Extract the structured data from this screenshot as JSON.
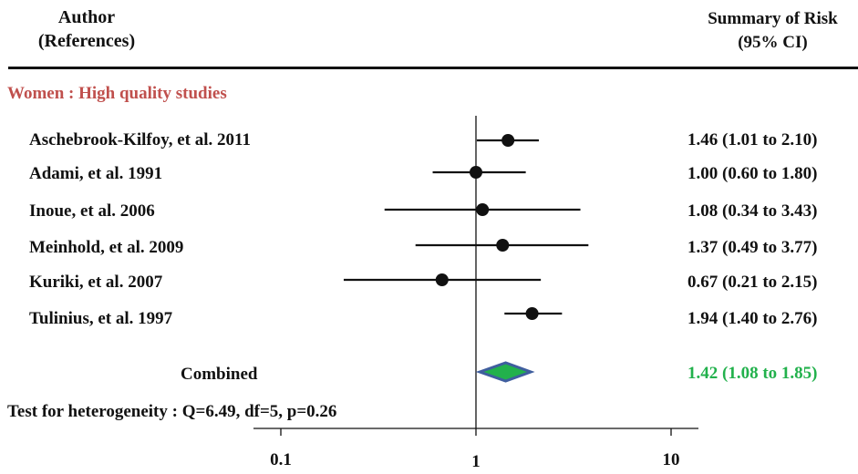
{
  "header": {
    "left_line1": "Author",
    "left_line2": "(References)",
    "right_line1": "Summary of Risk",
    "right_line2": "(95% CI)"
  },
  "subgroup_label": "Women : High quality studies",
  "heterogeneity": "Test for heterogeneity : Q=6.49,  df=5, p=0.26",
  "chart_data": {
    "type": "forest",
    "scale": "log",
    "xlim": [
      0.1,
      10
    ],
    "ticks": [
      "0.1",
      "1",
      "10"
    ],
    "reference_line": 1,
    "studies": [
      {
        "label": "Aschebrook-Kilfoy, et al. 2011",
        "estimate": 1.46,
        "lower": 1.01,
        "upper": 2.1,
        "text": "1.46 (1.01 to 2.10)"
      },
      {
        "label": "Adami, et al. 1991",
        "estimate": 1.0,
        "lower": 0.6,
        "upper": 1.8,
        "text": "1.00 (0.60 to 1.80)"
      },
      {
        "label": "Inoue, et al. 2006",
        "estimate": 1.08,
        "lower": 0.34,
        "upper": 3.43,
        "text": "1.08 (0.34 to 3.43)"
      },
      {
        "label": "Meinhold, et al. 2009",
        "estimate": 1.37,
        "lower": 0.49,
        "upper": 3.77,
        "text": "1.37 (0.49 to 3.77)"
      },
      {
        "label": "Kuriki,  et al. 2007",
        "estimate": 0.67,
        "lower": 0.21,
        "upper": 2.15,
        "text": "0.67 (0.21 to 2.15)"
      },
      {
        "label": "Tulinius,  et al. 1997",
        "estimate": 1.94,
        "lower": 1.4,
        "upper": 2.76,
        "text": "1.94 (1.40 to 2.76)"
      }
    ],
    "combined": {
      "label": "Combined",
      "estimate": 1.42,
      "lower": 1.08,
      "upper": 1.85,
      "text": "1.42 (1.08 to 1.85)"
    },
    "colors": {
      "diamond_fill": "#22b14c",
      "diamond_stroke": "#3f5e9e",
      "combined_text": "#22b14c",
      "subgroup_text": "#c0504d"
    }
  }
}
